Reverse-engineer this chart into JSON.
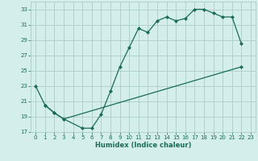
{
  "xlabel": "Humidex (Indice chaleur)",
  "bg_color": "#d4eeeb",
  "grid_color": "#aaccc8",
  "line_color": "#1a6b5a",
  "xlim": [
    -0.5,
    23.5
  ],
  "ylim": [
    17,
    34
  ],
  "yticks": [
    17,
    19,
    21,
    23,
    25,
    27,
    29,
    31,
    33
  ],
  "xticks": [
    0,
    1,
    2,
    3,
    4,
    5,
    6,
    7,
    8,
    9,
    10,
    11,
    12,
    13,
    14,
    15,
    16,
    17,
    18,
    19,
    20,
    21,
    22,
    23
  ],
  "line1_x": [
    0,
    1,
    2,
    3,
    5,
    6,
    7,
    8,
    9,
    10,
    11,
    12,
    13,
    14,
    15,
    16,
    17,
    18,
    19,
    20,
    21,
    22
  ],
  "line1_y": [
    23.0,
    20.5,
    19.5,
    18.7,
    17.5,
    17.5,
    19.3,
    22.3,
    25.5,
    28.0,
    30.5,
    30.0,
    31.5,
    32.0,
    31.5,
    31.8,
    33.0,
    33.0,
    32.5,
    32.0,
    32.0,
    28.5
  ],
  "line2_x": [
    1,
    2,
    3,
    22
  ],
  "line2_y": [
    20.5,
    19.5,
    18.7,
    25.5
  ]
}
